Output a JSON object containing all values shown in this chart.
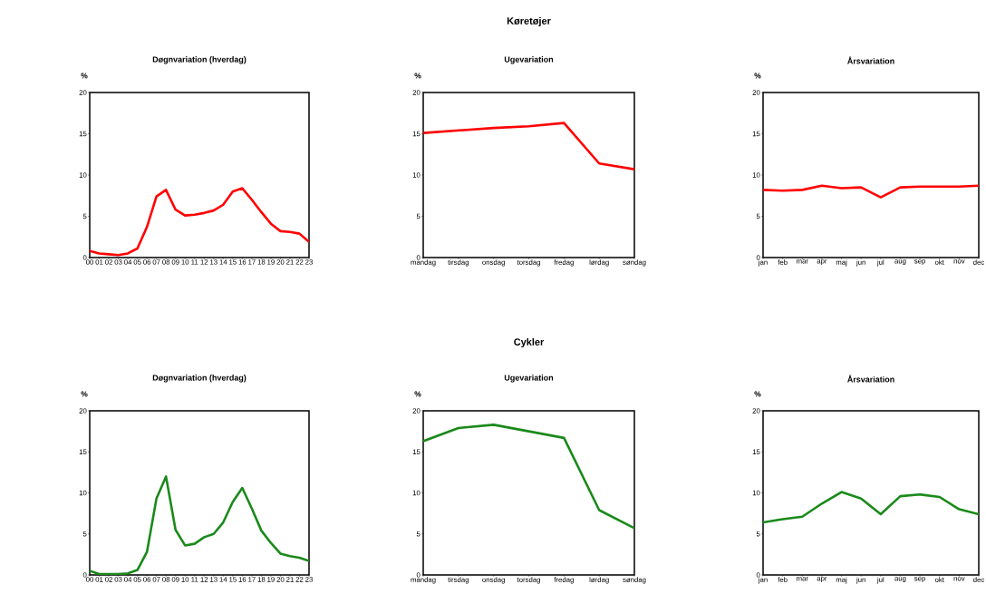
{
  "chart_data": [
    {
      "type": "line",
      "title": "Døgnvariation (hverdag)",
      "ylabel": "%",
      "categories": [
        "00",
        "01",
        "02",
        "03",
        "04",
        "05",
        "06",
        "07",
        "08",
        "09",
        "10",
        "11",
        "12",
        "13",
        "14",
        "15",
        "16",
        "17",
        "18",
        "19",
        "20",
        "21",
        "22",
        "23"
      ],
      "color": "#ff0000",
      "values": [
        0.8,
        0.5,
        0.4,
        0.3,
        0.5,
        1.1,
        3.7,
        7.4,
        8.2,
        5.8,
        5.1,
        5.2,
        5.4,
        5.7,
        6.4,
        8.0,
        8.4,
        7.0,
        5.5,
        4.1,
        3.2,
        3.1,
        2.9,
        1.9
      ],
      "ylim": [
        0,
        20
      ],
      "yticks": [
        0,
        5,
        10,
        15,
        20
      ]
    },
    {
      "type": "line",
      "title": "Ugevariation",
      "annotations": [
        "Køretøjer"
      ],
      "ylabel": "%",
      "categories": [
        "mandag",
        "tirsdag",
        "onsdag",
        "torsdag",
        "fredag",
        "lørdag",
        "søndag"
      ],
      "color": "#ff0000",
      "values": [
        15.1,
        15.4,
        15.7,
        15.9,
        16.3,
        11.4,
        10.7
      ],
      "ylim": [
        0,
        20
      ],
      "yticks": [
        0,
        5,
        10,
        15,
        20
      ]
    },
    {
      "type": "line",
      "title": "Årsvariation",
      "ylabel": "%",
      "categories": [
        "jan",
        "feb",
        "mar",
        "apr",
        "maj",
        "jun",
        "jul",
        "aug",
        "sep",
        "okt",
        "nov",
        "dec"
      ],
      "color": "#ff0000",
      "values": [
        8.2,
        8.1,
        8.2,
        8.7,
        8.4,
        8.5,
        7.3,
        8.5,
        8.6,
        8.6,
        8.6,
        8.7
      ],
      "ylim": [
        0,
        20
      ],
      "yticks": [
        0,
        5,
        10,
        15,
        20
      ]
    },
    {
      "type": "line",
      "title": "Døgnvariation (hverdag)",
      "ylabel": "%",
      "categories": [
        "00",
        "01",
        "02",
        "03",
        "04",
        "05",
        "06",
        "07",
        "08",
        "09",
        "10",
        "11",
        "12",
        "13",
        "14",
        "15",
        "16",
        "17",
        "18",
        "19",
        "20",
        "21",
        "22",
        "23"
      ],
      "color": "#1a8a1a",
      "values": [
        0.5,
        0.1,
        0.1,
        0.1,
        0.2,
        0.6,
        2.8,
        9.3,
        12.0,
        5.5,
        3.6,
        3.8,
        4.6,
        5.0,
        6.4,
        8.9,
        10.6,
        8.1,
        5.4,
        3.9,
        2.6,
        2.3,
        2.1,
        1.7
      ],
      "ylim": [
        0,
        20
      ],
      "yticks": [
        0,
        5,
        10,
        15,
        20
      ]
    },
    {
      "type": "line",
      "title": "Ugevariation",
      "annotations": [
        "Cykler"
      ],
      "ylabel": "%",
      "categories": [
        "mandag",
        "tirsdag",
        "onsdag",
        "torsdag",
        "fredag",
        "lørdag",
        "søndag"
      ],
      "color": "#1a8a1a",
      "values": [
        16.3,
        17.9,
        18.3,
        17.5,
        16.7,
        7.9,
        5.7
      ],
      "ylim": [
        0,
        20
      ],
      "yticks": [
        0,
        5,
        10,
        15,
        20
      ]
    },
    {
      "type": "line",
      "title": "Årsvariation",
      "ylabel": "%",
      "categories": [
        "jan",
        "feb",
        "mar",
        "apr",
        "maj",
        "jun",
        "jul",
        "aug",
        "sep",
        "okt",
        "nov",
        "dec"
      ],
      "color": "#1a8a1a",
      "values": [
        6.4,
        6.8,
        7.1,
        8.7,
        10.1,
        9.3,
        7.4,
        9.6,
        9.8,
        9.5,
        8.0,
        7.4
      ],
      "ylim": [
        0,
        20
      ],
      "yticks": [
        0,
        5,
        10,
        15,
        20
      ]
    }
  ]
}
